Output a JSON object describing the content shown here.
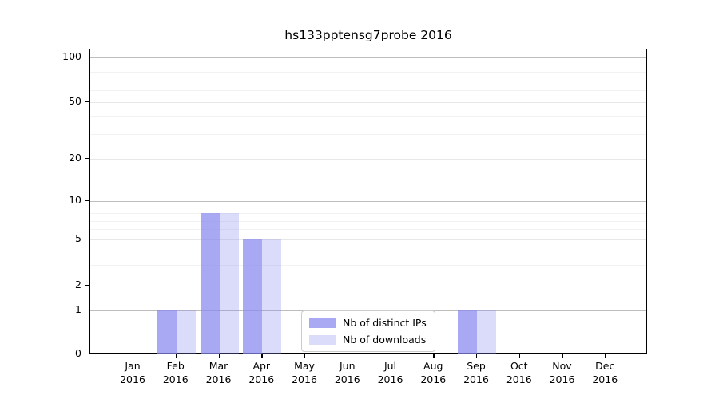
{
  "title": "hs133pptensg7probe 2016",
  "chart_data": {
    "type": "bar",
    "title": "hs133pptensg7probe 2016",
    "categories": [
      "Jan",
      "Feb",
      "Mar",
      "Apr",
      "May",
      "Jun",
      "Jul",
      "Aug",
      "Sep",
      "Oct",
      "Nov",
      "Dec"
    ],
    "year": "2016",
    "series": [
      {
        "name": "Nb of distinct IPs",
        "color": "rgba(136,136,238,0.72)",
        "values": [
          0,
          1,
          8,
          5,
          0,
          0,
          0,
          0,
          1,
          0,
          0,
          0
        ]
      },
      {
        "name": "Nb of downloads",
        "color": "rgba(136,136,238,0.30)",
        "values": [
          0,
          1,
          8,
          5,
          0,
          0,
          0,
          0,
          1,
          0,
          0,
          0
        ]
      }
    ],
    "xlabel": "",
    "ylabel": "",
    "yscale": "log-like (symlog with 0 baseline)",
    "yticks": [
      0,
      1,
      2,
      5,
      10,
      20,
      50,
      100
    ],
    "ylim": [
      0,
      100
    ],
    "grid": true,
    "grid_major_values": [
      1,
      10,
      100
    ],
    "grid_labeled_minor_values": [
      2,
      5,
      20,
      50
    ],
    "grid_minor_values": [
      3,
      4,
      6,
      7,
      8,
      9,
      30,
      40,
      60,
      70,
      80,
      90
    ],
    "legend_position": "lower center (inside axes)",
    "colors": {
      "bar_base": "#8888ee",
      "grid_major": "#bdbdbd",
      "grid_labeled": "#e7e7e7",
      "grid_minor": "#f2f2f2",
      "axis": "#000000",
      "legend_border": "#cccccc"
    }
  }
}
